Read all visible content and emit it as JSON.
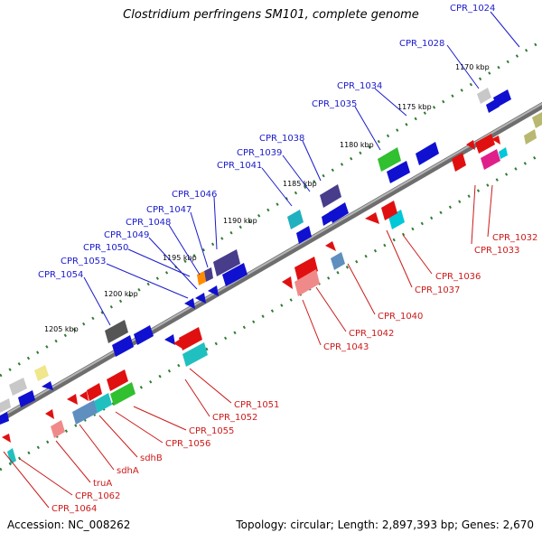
{
  "map": {
    "title": "Clostridium perfringens SM101, complete genome",
    "accession": "Accession: NC_008262",
    "summary": "Topology: circular; Length: 2,897,393 bp; Genes: 2,670"
  },
  "colors": {
    "forward_label": "#1a1acc",
    "reverse_label": "#cc1a1a",
    "backbone": "#8a8a8a",
    "tick": "#2e7d32"
  },
  "kbp_labels": [
    "1170 kbp",
    "1175 kbp",
    "1180 kbp",
    "1185 kbp",
    "1190 kbp",
    "1195 kbp",
    "1200 kbp",
    "1205 kbp"
  ],
  "forward_labels": [
    "CPR_1024",
    "CPR_1028",
    "CPR_1034",
    "CPR_1035",
    "CPR_1038",
    "CPR_1039",
    "CPR_1041",
    "CPR_1046",
    "CPR_1047",
    "CPR_1048",
    "CPR_1049",
    "CPR_1050",
    "CPR_1053",
    "CPR_1054"
  ],
  "reverse_labels": [
    "CPR_1032",
    "CPR_1033",
    "CPR_1036",
    "CPR_1037",
    "CPR_1040",
    "CPR_1042",
    "CPR_1043",
    "CPR_1051",
    "CPR_1052",
    "CPR_1055",
    "CPR_1056",
    "sdhB",
    "sdhA",
    "truA",
    "CPR_1062",
    "CPR_1064"
  ]
}
